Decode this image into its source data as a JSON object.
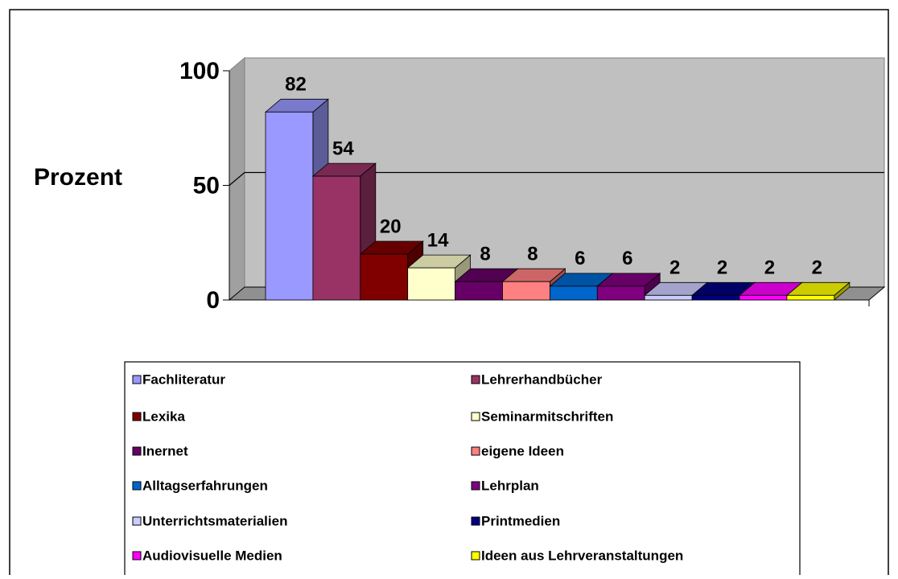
{
  "chart_data": {
    "type": "bar",
    "y_label": "Prozent",
    "categories": [
      "Fachliteratur",
      "Lehrerhandbücher",
      "Lexika",
      "Seminarmitschriften",
      "Inernet",
      "eigene Ideen",
      "Alltagserfahrungen",
      "Lehrplan",
      "Unterrichtsmaterialien",
      "Printmedien",
      "Audiovisuelle Medien",
      "Ideen aus Lehrveranstaltungen"
    ],
    "values": [
      82,
      54,
      20,
      14,
      8,
      8,
      6,
      6,
      2,
      2,
      2,
      2
    ],
    "colors": [
      "#9999ff",
      "#993366",
      "#800000",
      "#ffffcc",
      "#660066",
      "#ff8080",
      "#0066cc",
      "#800080",
      "#ccccff",
      "#000080",
      "#ff00ff",
      "#ffff00"
    ],
    "ylim": [
      0,
      100
    ],
    "yticks": [
      0,
      50,
      100
    ],
    "grid": true,
    "legend": "bottom"
  }
}
